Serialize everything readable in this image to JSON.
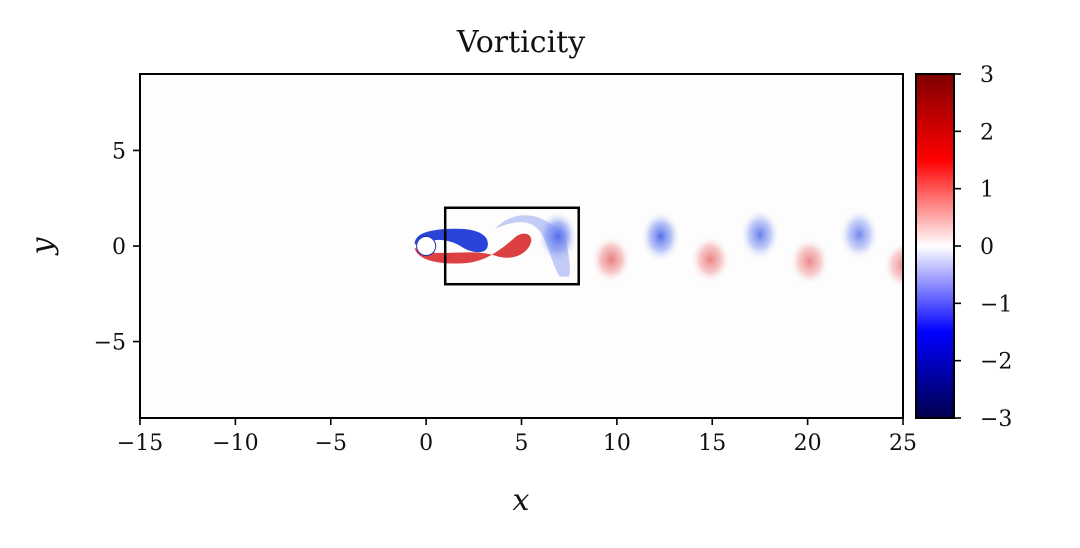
{
  "chart_data": {
    "type": "heatmap",
    "title": "Vorticity",
    "xlabel": "x",
    "ylabel": "y",
    "xlim": [
      -15,
      25
    ],
    "ylim": [
      -9,
      9
    ],
    "x_ticks": [
      -15,
      -10,
      -5,
      0,
      5,
      10,
      15,
      20,
      25
    ],
    "x_tick_labels": [
      "−15",
      "−10",
      "−5",
      "0",
      "5",
      "10",
      "15",
      "20",
      "25"
    ],
    "y_ticks": [
      5,
      0,
      -5
    ],
    "y_tick_labels": [
      "5",
      "0",
      "−5"
    ],
    "colorbar": {
      "range": [
        -3,
        3
      ],
      "ticks": [
        3,
        2,
        1,
        0,
        -1,
        -2,
        -3
      ],
      "tick_labels": [
        "3",
        "2",
        "1",
        "0",
        "−1",
        "−2",
        "−3"
      ],
      "colormap": "seismic",
      "colors": {
        "min": "#00004c",
        "low": "#0000ff",
        "zero": "#ffffff",
        "high": "#ff0000",
        "max": "#7f0000"
      }
    },
    "cylinder": {
      "center": [
        0,
        0
      ],
      "radius": 0.5
    },
    "highlight_box": {
      "x": [
        1,
        8
      ],
      "y": [
        -2,
        2
      ]
    },
    "vortices": [
      {
        "x": 6.9,
        "y": 0.5,
        "strength": -1.9
      },
      {
        "x": 9.7,
        "y": -0.7,
        "strength": 1.0
      },
      {
        "x": 12.3,
        "y": 0.5,
        "strength": -1.5
      },
      {
        "x": 14.9,
        "y": -0.7,
        "strength": 0.9
      },
      {
        "x": 17.5,
        "y": 0.6,
        "strength": -1.2
      },
      {
        "x": 20.1,
        "y": -0.8,
        "strength": 0.8
      },
      {
        "x": 22.7,
        "y": 0.6,
        "strength": -1.0
      },
      {
        "x": 25.0,
        "y": -1.0,
        "strength": 0.7
      }
    ]
  }
}
